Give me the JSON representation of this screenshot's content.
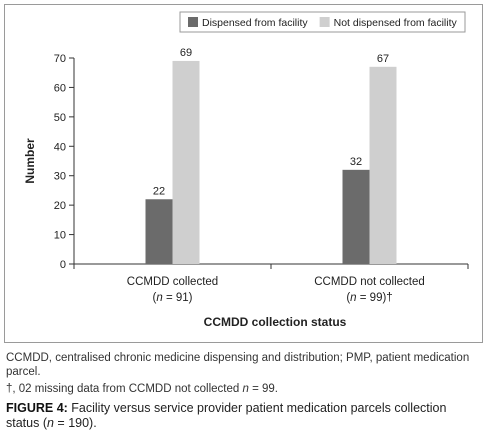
{
  "chart_data": {
    "type": "bar",
    "categories": [
      "CCMDD collected",
      "CCMDD not collected"
    ],
    "category_sublabels": [
      {
        "pre": "(",
        "n": "n",
        "post": " = 91)"
      },
      {
        "pre": "(",
        "n": "n",
        "post": " = 99)†"
      }
    ],
    "series": [
      {
        "name": "Dispensed from facility",
        "values": [
          22,
          32
        ],
        "color": "#6b6b6b"
      },
      {
        "name": "Not dispensed from facility",
        "values": [
          69,
          67
        ],
        "color": "#cfcfcf"
      }
    ],
    "xlabel": "CCMDD collection status",
    "ylabel": "Number",
    "ylim": [
      0,
      70
    ],
    "yticks": [
      0,
      10,
      20,
      30,
      40,
      50,
      60,
      70
    ],
    "legend_position": "top-right",
    "grid": false
  },
  "captions": {
    "abbreviations": "CCMDD, centralised chronic medicine dispensing and distribution; PMP, patient medication parcel.",
    "missing_pre": "†, 02 missing data from CCMDD not collected ",
    "missing_n": "n",
    "missing_post": " = 99.",
    "figure_label": "FIGURE 4:",
    "figure_pre": " Facility versus service provider patient medication parcels collection status (",
    "figure_n": "n",
    "figure_post": " = 190)."
  }
}
